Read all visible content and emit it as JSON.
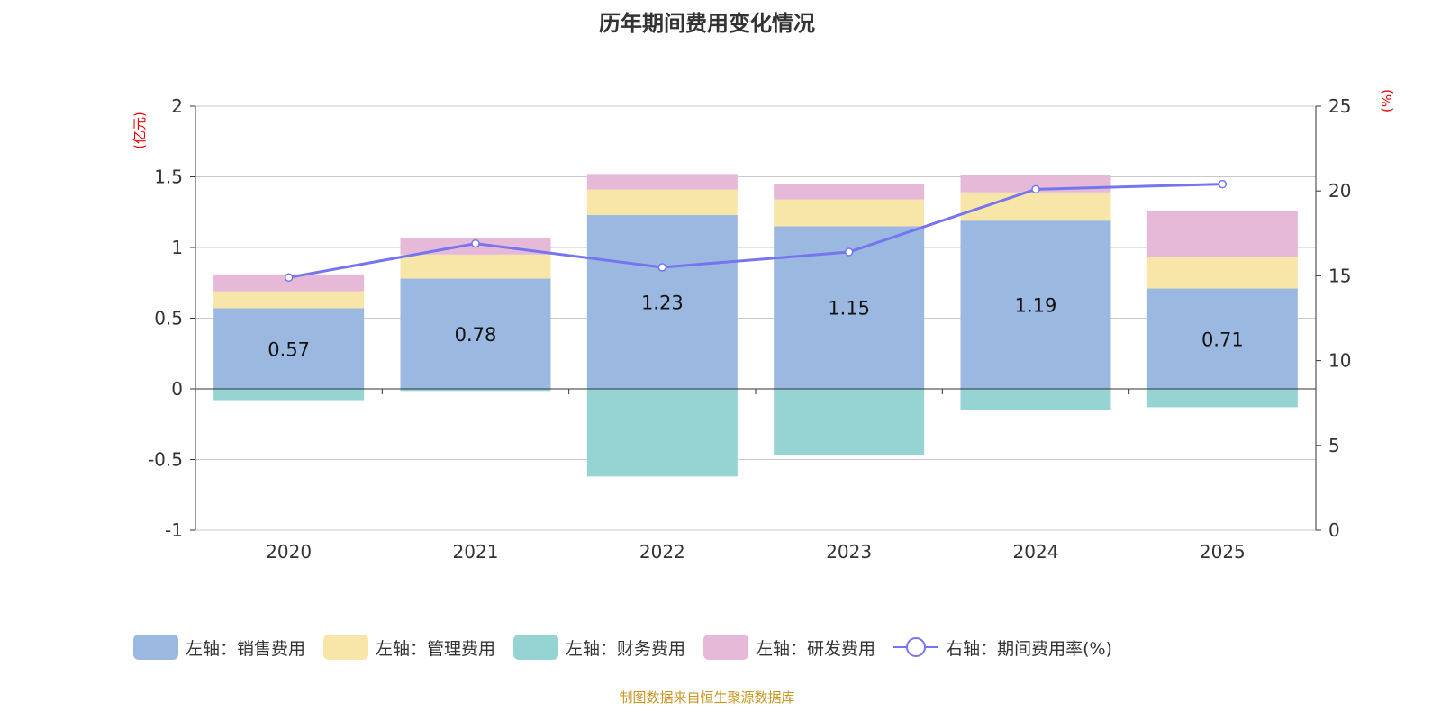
{
  "chart_data": {
    "type": "bar",
    "title": "历年期间费用变化情况",
    "categories": [
      "2020",
      "2021",
      "2022",
      "2023",
      "2024",
      "2025"
    ],
    "left_axis": {
      "unit": "(亿元)",
      "ylim": [
        -1,
        2
      ],
      "ticks": [
        "-1",
        "-0.5",
        "0",
        "0.5",
        "1",
        "1.5",
        "2"
      ]
    },
    "right_axis": {
      "unit": "(%)",
      "ylim": [
        0,
        25
      ],
      "ticks": [
        "0",
        "5",
        "10",
        "15",
        "20",
        "25"
      ]
    },
    "series": [
      {
        "name": "左轴：销售费用",
        "color": "#9bb8e0",
        "values": [
          0.57,
          0.78,
          1.23,
          1.15,
          1.19,
          0.71
        ],
        "labels": [
          "0.57",
          "0.78",
          "1.23",
          "1.15",
          "1.19",
          "0.71"
        ]
      },
      {
        "name": "左轴：管理费用",
        "color": "#f8e6a8",
        "values": [
          0.12,
          0.17,
          0.18,
          0.19,
          0.2,
          0.22
        ]
      },
      {
        "name": "左轴：财务费用",
        "color": "#96d3d3",
        "values": [
          -0.08,
          -0.015,
          -0.62,
          -0.47,
          -0.15,
          -0.13
        ]
      },
      {
        "name": "左轴：研发费用",
        "color": "#e6b9d8",
        "values": [
          0.12,
          0.12,
          0.11,
          0.11,
          0.12,
          0.33
        ]
      },
      {
        "name": "右轴：期间费用率(%)",
        "type": "line",
        "color": "#7575f0",
        "values": [
          14.9,
          16.9,
          15.5,
          16.4,
          20.1,
          20.4
        ]
      }
    ],
    "legend_position": "bottom",
    "grid": true
  },
  "source": "制图数据来自恒生聚源数据库"
}
